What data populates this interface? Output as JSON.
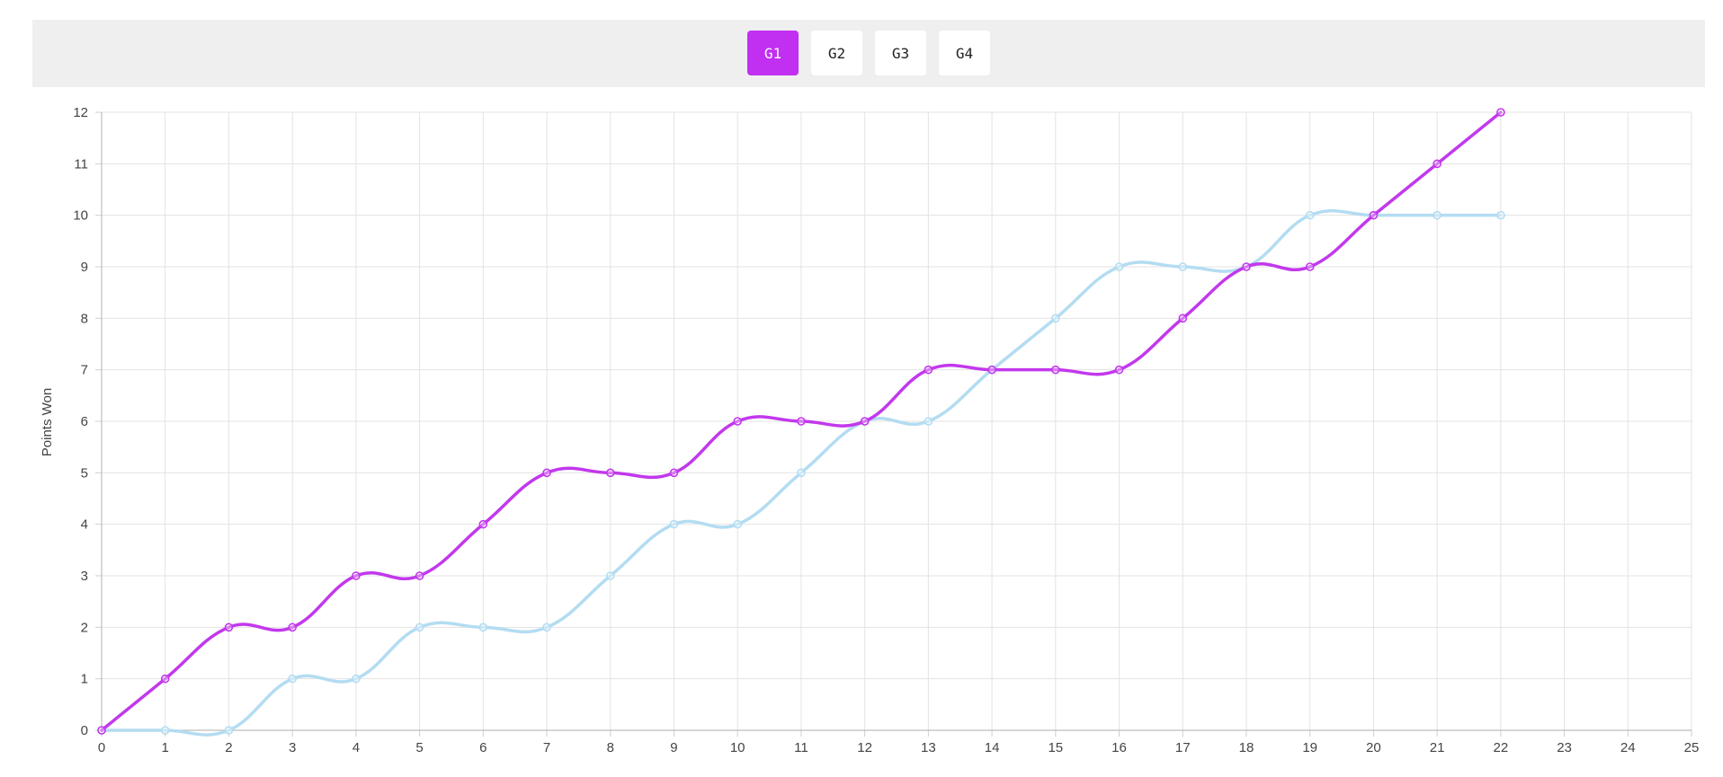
{
  "tabs": [
    {
      "label": "G1",
      "active": true
    },
    {
      "label": "G2",
      "active": false
    },
    {
      "label": "G3",
      "active": false
    },
    {
      "label": "G4",
      "active": false
    }
  ],
  "colors": {
    "accent": "#c12ff0",
    "series_purple": "#c238ec",
    "series_blue": "#b3dcf2",
    "grid": "#e3e3e3"
  },
  "chart_data": {
    "type": "line",
    "ylabel": "Points Won",
    "xlabel": "",
    "xlim": [
      0,
      25
    ],
    "ylim": [
      0,
      12
    ],
    "x_ticks": [
      0,
      1,
      2,
      3,
      4,
      5,
      6,
      7,
      8,
      9,
      10,
      11,
      12,
      13,
      14,
      15,
      16,
      17,
      18,
      19,
      20,
      21,
      22,
      23,
      24,
      25
    ],
    "y_ticks": [
      0,
      1,
      2,
      3,
      4,
      5,
      6,
      7,
      8,
      9,
      10,
      11,
      12
    ],
    "grid": true,
    "series": [
      {
        "color": "#c238ec",
        "x": [
          0,
          1,
          2,
          3,
          4,
          5,
          6,
          7,
          8,
          9,
          10,
          11,
          12,
          13,
          14,
          15,
          16,
          17,
          18,
          19,
          20,
          21,
          22
        ],
        "values": [
          0,
          1,
          2,
          2,
          3,
          3,
          4,
          5,
          5,
          5,
          6,
          6,
          6,
          7,
          7,
          7,
          7,
          8,
          9,
          9,
          10,
          11,
          12
        ]
      },
      {
        "color": "#b3dcf2",
        "x": [
          0,
          1,
          2,
          3,
          4,
          5,
          6,
          7,
          8,
          9,
          10,
          11,
          12,
          13,
          14,
          15,
          16,
          17,
          18,
          19,
          20,
          21,
          22
        ],
        "values": [
          0,
          0,
          0,
          1,
          1,
          2,
          2,
          2,
          3,
          4,
          4,
          5,
          6,
          6,
          7,
          8,
          9,
          9,
          9,
          10,
          10,
          10,
          10
        ]
      }
    ]
  }
}
